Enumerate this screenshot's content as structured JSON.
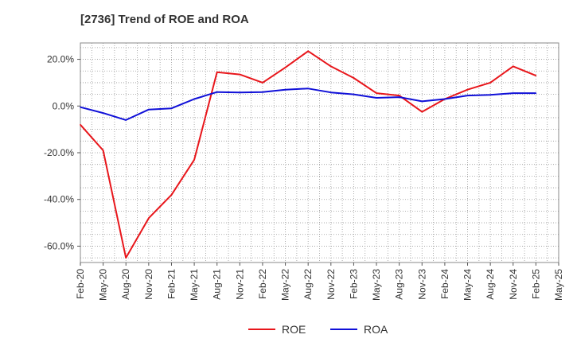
{
  "chart_data": {
    "type": "line",
    "title": "[2736]  Trend of ROE and ROA",
    "xlabel": "",
    "ylabel": "",
    "x": [
      "Feb-20",
      "May-20",
      "Aug-20",
      "Nov-20",
      "Feb-21",
      "May-21",
      "Aug-21",
      "Nov-21",
      "Feb-22",
      "May-22",
      "Aug-22",
      "Nov-22",
      "Feb-23",
      "May-23",
      "Aug-23",
      "Nov-23",
      "Feb-24",
      "May-24",
      "Aug-24",
      "Nov-24",
      "Feb-25",
      "May-25"
    ],
    "ylim": [
      -67,
      27
    ],
    "yticks": [
      20,
      0,
      -20,
      -40,
      -60
    ],
    "ytick_labels": [
      "20.0%",
      "0.0%",
      "-20.0%",
      "-40.0%",
      "-60.0%"
    ],
    "grid": true,
    "legend_position": "bottom",
    "series": [
      {
        "name": "ROE",
        "color": "#e8161b",
        "values": [
          -8.0,
          -19.0,
          -65.0,
          -48.0,
          -38.0,
          -23.0,
          14.5,
          13.5,
          10.0,
          16.5,
          23.5,
          17.0,
          12.0,
          5.5,
          4.5,
          -2.5,
          3.0,
          7.0,
          10.0,
          17.0,
          13.0,
          null
        ]
      },
      {
        "name": "ROA",
        "color": "#1010d8",
        "values": [
          -0.5,
          -3.0,
          -6.0,
          -1.5,
          -1.0,
          3.0,
          6.0,
          5.8,
          6.0,
          7.0,
          7.5,
          5.8,
          5.0,
          3.5,
          3.8,
          2.0,
          3.0,
          4.5,
          4.8,
          5.5,
          5.5,
          null
        ]
      }
    ]
  }
}
